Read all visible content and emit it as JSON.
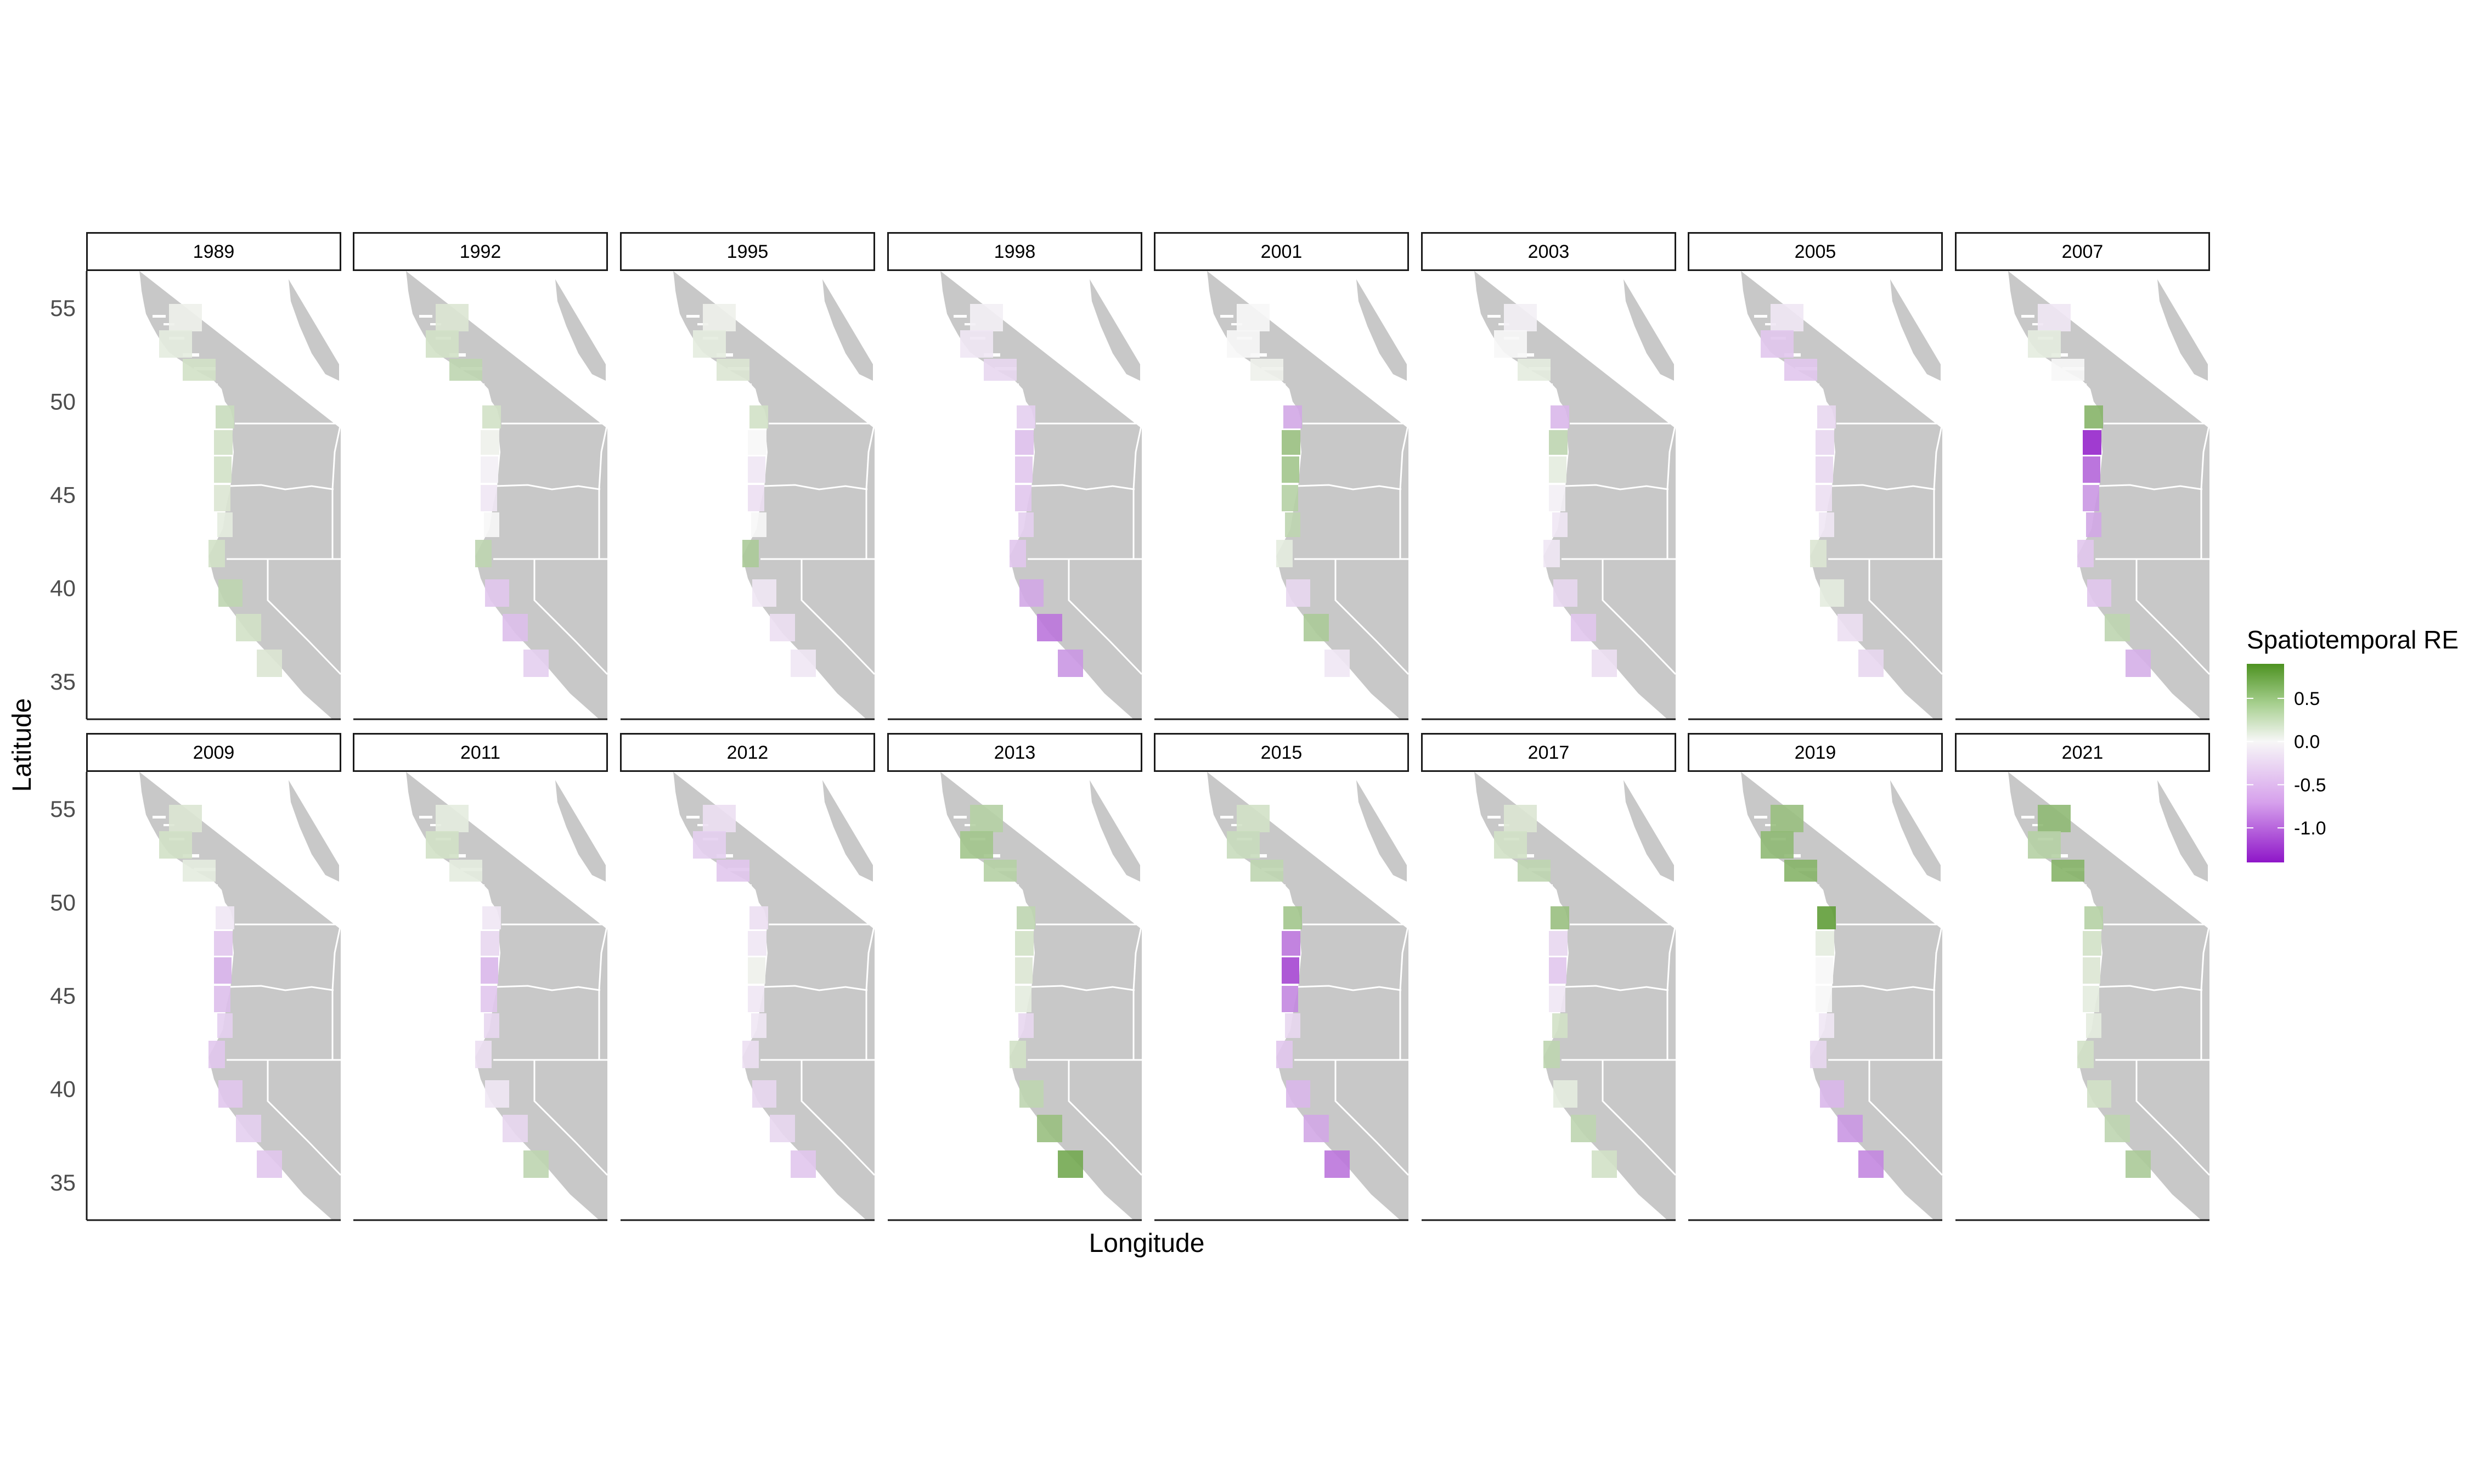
{
  "chart_data": {
    "type": "heatmap",
    "title": "",
    "xlabel": "Longitude",
    "ylabel": "Latitude",
    "ylim": [
      33,
      57
    ],
    "y_ticks": [
      "55",
      "50",
      "45",
      "40",
      "35"
    ],
    "y_tick_values": [
      55,
      50,
      45,
      40,
      35
    ],
    "grid": false,
    "legend": {
      "title": "Spatiotemporal RE",
      "position": "right",
      "ticks": [
        "0.5",
        "0.0",
        "-0.5",
        "-1.0"
      ],
      "tick_values": [
        0.5,
        0.0,
        -0.5,
        -1.0
      ],
      "range": [
        -1.4,
        0.9
      ],
      "colors": {
        "high": "#4d9221",
        "mid": "#f7f7f7",
        "low": "#8e16c8"
      }
    },
    "land_color": "#c8c8c8",
    "facets": [
      {
        "year": "1989",
        "values": [
          0.05,
          0.1,
          0.2,
          0.25,
          0.2,
          0.2,
          0.15,
          0.1,
          0.2,
          0.3,
          0.2,
          0.15
        ]
      },
      {
        "year": "1992",
        "values": [
          0.15,
          0.2,
          0.3,
          0.2,
          0.05,
          -0.05,
          -0.1,
          0.0,
          0.3,
          -0.3,
          -0.35,
          -0.25
        ]
      },
      {
        "year": "1995",
        "values": [
          0.05,
          0.1,
          0.15,
          0.2,
          0.0,
          -0.1,
          -0.15,
          0.0,
          0.4,
          -0.1,
          -0.15,
          -0.1
        ]
      },
      {
        "year": "1998",
        "values": [
          -0.05,
          -0.1,
          -0.2,
          -0.25,
          -0.35,
          -0.3,
          -0.3,
          -0.25,
          -0.3,
          -0.5,
          -0.8,
          -0.6
        ]
      },
      {
        "year": "2001",
        "values": [
          0.0,
          0.0,
          0.05,
          -0.5,
          0.5,
          0.45,
          0.35,
          0.3,
          0.1,
          -0.2,
          0.4,
          -0.1
        ]
      },
      {
        "year": "2003",
        "values": [
          -0.05,
          0.0,
          0.1,
          -0.4,
          0.3,
          0.1,
          -0.05,
          -0.1,
          -0.1,
          -0.2,
          -0.3,
          -0.15
        ]
      },
      {
        "year": "2005",
        "values": [
          -0.1,
          -0.3,
          -0.3,
          -0.2,
          -0.2,
          -0.2,
          -0.15,
          -0.1,
          0.15,
          0.1,
          -0.15,
          -0.2
        ]
      },
      {
        "year": "2007",
        "values": [
          -0.1,
          0.1,
          0.0,
          0.6,
          -1.3,
          -0.9,
          -0.6,
          -0.5,
          -0.3,
          -0.3,
          0.3,
          -0.45
        ]
      },
      {
        "year": "2009",
        "values": [
          0.15,
          0.2,
          0.1,
          -0.1,
          -0.3,
          -0.45,
          -0.35,
          -0.25,
          -0.3,
          -0.3,
          -0.25,
          -0.3
        ]
      },
      {
        "year": "2011",
        "values": [
          0.1,
          0.2,
          0.1,
          -0.1,
          -0.2,
          -0.4,
          -0.3,
          -0.2,
          -0.15,
          -0.1,
          -0.2,
          0.3
        ]
      },
      {
        "year": "2012",
        "values": [
          -0.15,
          -0.25,
          -0.3,
          -0.15,
          -0.1,
          0.05,
          -0.1,
          -0.1,
          -0.15,
          -0.2,
          -0.2,
          -0.3
        ]
      },
      {
        "year": "2013",
        "values": [
          0.35,
          0.45,
          0.35,
          0.3,
          0.2,
          0.15,
          0.1,
          -0.2,
          0.2,
          0.3,
          0.5,
          0.7
        ]
      },
      {
        "year": "2015",
        "values": [
          0.2,
          0.25,
          0.3,
          0.45,
          -0.8,
          -1.1,
          -0.7,
          -0.2,
          -0.3,
          -0.4,
          -0.5,
          -0.8
        ]
      },
      {
        "year": "2017",
        "values": [
          0.15,
          0.2,
          0.3,
          0.5,
          -0.2,
          -0.3,
          -0.1,
          0.2,
          0.3,
          0.1,
          0.3,
          0.2
        ]
      },
      {
        "year": "2019",
        "values": [
          0.5,
          0.55,
          0.6,
          0.8,
          0.1,
          0.0,
          0.0,
          -0.1,
          -0.2,
          -0.4,
          -0.6,
          -0.7
        ]
      },
      {
        "year": "2021",
        "values": [
          0.55,
          0.35,
          0.6,
          0.35,
          0.2,
          0.15,
          0.1,
          0.1,
          0.2,
          0.2,
          0.3,
          0.4
        ]
      }
    ]
  }
}
